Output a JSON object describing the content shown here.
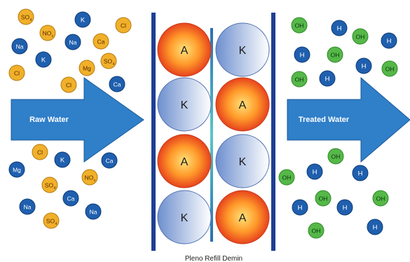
{
  "caption": "Pleno Refill Demin",
  "arrows": {
    "left_label": "Raw Water",
    "right_label": "Treated Water"
  },
  "colors": {
    "arrow_fill": "#2f7fc9",
    "arrow_stroke": "#1b5a99",
    "column_bar": "#1f3f94",
    "column_center": "#5cc6c6",
    "anion_core": "#ffe27a",
    "anion_mid": "#ff9a2a",
    "anion_edge": "#e2301a",
    "cation_core": "#ffffff",
    "cation_edge": "#6d8fce",
    "blue_ion": "#1f5fae",
    "blue_ion_text": "#ffffff",
    "orange_ion": "#f0b02a",
    "orange_ion_text": "#5a2a00",
    "green_ion": "#55b848",
    "green_ion_text": "#0a3310"
  },
  "resin": {
    "left_column": [
      "A",
      "K",
      "A",
      "K"
    ],
    "right_column": [
      "K",
      "A",
      "K",
      "A"
    ]
  },
  "raw_ions": [
    {
      "label": "SO",
      "sub": "4",
      "type": "orange"
    },
    {
      "label": "K",
      "sub": "",
      "type": "blue"
    },
    {
      "label": "Cl",
      "sub": "",
      "type": "orange"
    },
    {
      "label": "NO",
      "sub": "x",
      "type": "orange"
    },
    {
      "label": "Na",
      "sub": "",
      "type": "blue"
    },
    {
      "label": "Na",
      "sub": "",
      "type": "blue"
    },
    {
      "label": "Ca",
      "sub": "",
      "type": "orange"
    },
    {
      "label": "K",
      "sub": "",
      "type": "blue"
    },
    {
      "label": "Mg",
      "sub": "",
      "type": "orange"
    },
    {
      "label": "SO",
      "sub": "4",
      "type": "orange"
    },
    {
      "label": "Cl",
      "sub": "",
      "type": "orange"
    },
    {
      "label": "Cl",
      "sub": "",
      "type": "orange"
    },
    {
      "label": "Ca",
      "sub": "",
      "type": "blue"
    },
    {
      "label": "Cl",
      "sub": "",
      "type": "orange"
    },
    {
      "label": "K",
      "sub": "",
      "type": "blue"
    },
    {
      "label": "Ca",
      "sub": "",
      "type": "blue"
    },
    {
      "label": "Mg",
      "sub": "",
      "type": "blue"
    },
    {
      "label": "NO",
      "sub": "x",
      "type": "orange"
    },
    {
      "label": "SO",
      "sub": "4",
      "type": "orange"
    },
    {
      "label": "Ca",
      "sub": "",
      "type": "blue"
    },
    {
      "label": "Na",
      "sub": "",
      "type": "blue"
    },
    {
      "label": "Na",
      "sub": "",
      "type": "blue"
    },
    {
      "label": "SO",
      "sub": "4",
      "type": "orange"
    }
  ],
  "treated_ions": [
    {
      "label": "OH",
      "type": "green"
    },
    {
      "label": "H",
      "type": "blue"
    },
    {
      "label": "OH",
      "type": "green"
    },
    {
      "label": "H",
      "type": "blue"
    },
    {
      "label": "H",
      "type": "blue"
    },
    {
      "label": "OH",
      "type": "green"
    },
    {
      "label": "H",
      "type": "blue"
    },
    {
      "label": "OH",
      "type": "green"
    },
    {
      "label": "OH",
      "type": "green"
    },
    {
      "label": "H",
      "type": "blue"
    },
    {
      "label": "OH",
      "type": "green"
    },
    {
      "label": "OH",
      "type": "green"
    },
    {
      "label": "H",
      "type": "blue"
    },
    {
      "label": "H",
      "type": "blue"
    },
    {
      "label": "OH",
      "type": "green"
    },
    {
      "label": "OH",
      "type": "green"
    },
    {
      "label": "H",
      "type": "blue"
    },
    {
      "label": "H",
      "type": "blue"
    },
    {
      "label": "OH",
      "type": "green"
    },
    {
      "label": "H",
      "type": "blue"
    }
  ]
}
